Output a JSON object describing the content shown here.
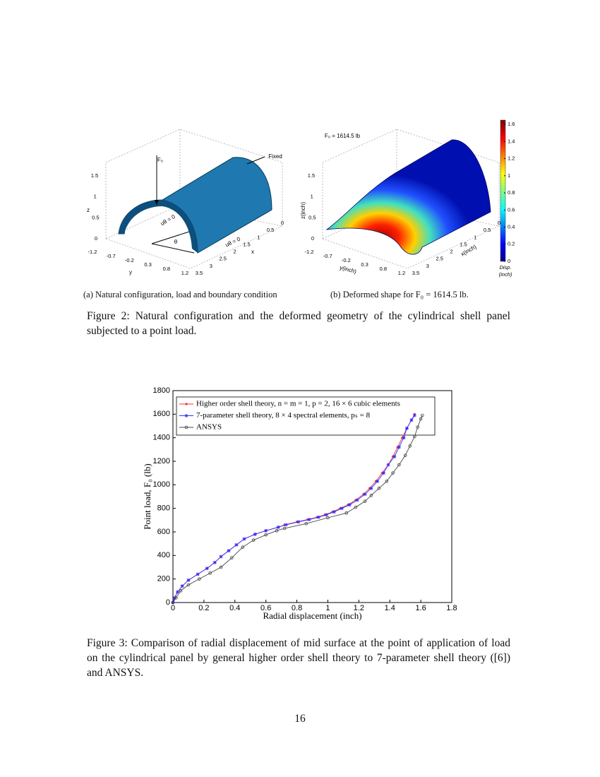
{
  "figure2": {
    "subfigure_a": {
      "caption": "(a)  Natural configuration, load and boundary condition",
      "z_ticks": [
        "1.5",
        "1",
        "0.5",
        "0"
      ],
      "y_ticks": [
        "-1.2",
        "-0.7",
        "-0.2",
        "0.3",
        "0.8",
        "1.2"
      ],
      "x_ticks": [
        "3.5",
        "3",
        "2.5",
        "2",
        "1.5",
        "1",
        "0.5",
        "0"
      ],
      "z_label": "z",
      "y_label": "y",
      "x_label": "x",
      "load_label": "F₀",
      "fixed_label": "Fixed",
      "bc_label_1": "uθ = 0",
      "bc_label_2": "uθ = 0",
      "angle_label": "θ"
    },
    "subfigure_b": {
      "caption": "(b)  Deformed shape for F₀ = 1614.5 lb.",
      "z_ticks": [
        "1.5",
        "1",
        "0.5",
        "0"
      ],
      "y_ticks": [
        "-1.2",
        "-0.7",
        "-0.2",
        "0.3",
        "0.8",
        "1.2"
      ],
      "x_ticks": [
        "3.5",
        "3",
        "2.5",
        "2",
        "1.5",
        "1",
        "0.5",
        "0"
      ],
      "z_label": "z(inch)",
      "y_label": "y(inch)",
      "x_label": "x(inch)",
      "load_label": "F₀ = 1614.5 lb",
      "colorbar": {
        "ticks": [
          0,
          0.2,
          0.4,
          0.6,
          0.8,
          1,
          1.2,
          1.4,
          1.6
        ],
        "lim": [
          0,
          1.65
        ],
        "label_1": "Disp.",
        "label_2": "(inch)"
      }
    },
    "caption": "Figure 2: Natural configuration and the deformed geometry of the cylindrical shell panel subjected to a point load."
  },
  "chart_data": {
    "type": "line",
    "x_label": "Radial displacement (inch)",
    "y_label": "Point load, F₀ (lb)",
    "xlim": [
      0,
      1.8
    ],
    "xticks": [
      0,
      0.2,
      0.4,
      0.6,
      0.8,
      1,
      1.2,
      1.4,
      1.6,
      1.8
    ],
    "ylim": [
      0,
      1800
    ],
    "yticks": [
      0,
      200,
      400,
      600,
      800,
      1000,
      1200,
      1400,
      1600,
      1800
    ],
    "legend": "upper left",
    "series": [
      {
        "name": "Higher order shell theory, n = m = 1, p = 2,  16 × 6 cubic elements",
        "color": "#ff3030",
        "marker": "dot",
        "x": [
          0,
          0.01,
          0.03,
          0.06,
          0.1,
          0.16,
          0.22,
          0.27,
          0.31,
          0.36,
          0.41,
          0.46,
          0.53,
          0.6,
          0.68,
          0.72,
          0.8,
          0.87,
          0.93,
          0.98,
          1.03,
          1.08,
          1.13,
          1.18,
          1.23,
          1.27,
          1.31,
          1.35,
          1.39,
          1.42,
          1.45,
          1.48,
          1.51,
          1.54,
          1.56
        ],
        "values": [
          0,
          40,
          90,
          140,
          190,
          240,
          290,
          340,
          390,
          440,
          490,
          540,
          580,
          610,
          640,
          660,
          685,
          705,
          725,
          745,
          770,
          800,
          830,
          870,
          920,
          970,
          1030,
          1100,
          1170,
          1240,
          1320,
          1400,
          1480,
          1550,
          1600
        ]
      },
      {
        "name": "7-parameter shell theory, 8 × 4 spectral elements, pₛ = 8",
        "color": "#3030ff",
        "marker": "star",
        "x": [
          0,
          0.01,
          0.03,
          0.06,
          0.1,
          0.16,
          0.22,
          0.27,
          0.31,
          0.36,
          0.41,
          0.46,
          0.53,
          0.6,
          0.68,
          0.73,
          0.81,
          0.88,
          0.94,
          0.99,
          1.04,
          1.09,
          1.14,
          1.19,
          1.24,
          1.28,
          1.32,
          1.36,
          1.39,
          1.43,
          1.46,
          1.49,
          1.51,
          1.54,
          1.56
        ],
        "values": [
          0,
          40,
          90,
          140,
          190,
          240,
          290,
          340,
          390,
          440,
          490,
          540,
          580,
          610,
          640,
          660,
          685,
          705,
          725,
          745,
          770,
          800,
          830,
          870,
          920,
          970,
          1030,
          1100,
          1170,
          1240,
          1320,
          1400,
          1480,
          1550,
          1590
        ]
      },
      {
        "name": "ANSYS",
        "color": "#444444",
        "marker": "circle",
        "x": [
          0,
          0.02,
          0.05,
          0.1,
          0.17,
          0.24,
          0.31,
          0.38,
          0.45,
          0.52,
          0.6,
          0.67,
          0.72,
          0.86,
          1,
          1.12,
          1.18,
          1.24,
          1.28,
          1.33,
          1.38,
          1.42,
          1.46,
          1.5,
          1.53,
          1.56,
          1.58,
          1.6,
          1.61
        ],
        "values": [
          0,
          40,
          100,
          150,
          200,
          250,
          300,
          380,
          470,
          530,
          575,
          610,
          630,
          670,
          720,
          760,
          810,
          860,
          910,
          970,
          1030,
          1100,
          1170,
          1250,
          1330,
          1410,
          1490,
          1560,
          1590
        ]
      }
    ]
  },
  "figure3_caption": "Figure 3:  Comparison of radial displacement of mid surface at the point of application of load on the cylindrical panel by general higher order shell theory to 7-parameter shell theory ([6]) and ANSYS.",
  "page_number": "16"
}
